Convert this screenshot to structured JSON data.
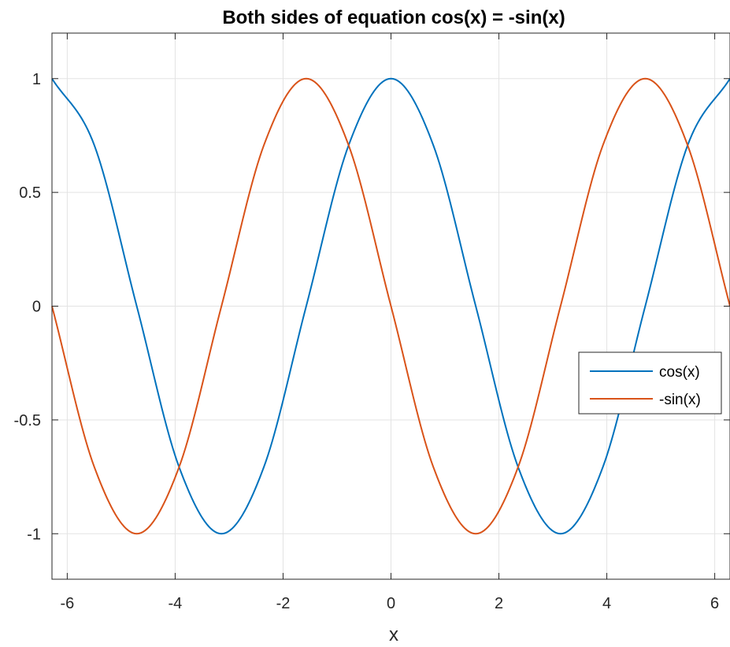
{
  "chart_data": {
    "type": "line",
    "title": "Both sides of equation cos(x) = -sin(x)",
    "xlabel": "x",
    "ylabel": "",
    "xlim": [
      -6.283,
      6.283
    ],
    "ylim": [
      -1.2,
      1.2
    ],
    "grid": true,
    "legend_position": "right",
    "x_ticks": [
      -6,
      -4,
      -2,
      0,
      2,
      4,
      6
    ],
    "x_tick_labels": [
      "-6",
      "-4",
      "-2",
      "0",
      "2",
      "4",
      "6"
    ],
    "y_ticks": [
      -1,
      -0.5,
      0,
      0.5,
      1
    ],
    "y_tick_labels": [
      "-1",
      "-0.5",
      "0",
      "0.5",
      "1"
    ],
    "x": [
      -6.283,
      -5.498,
      -4.712,
      -3.927,
      -3.142,
      -2.356,
      -1.571,
      -0.785,
      0,
      0.785,
      1.571,
      2.356,
      3.142,
      3.927,
      4.712,
      5.498,
      6.283
    ],
    "series": [
      {
        "name": "cos(x)",
        "color": "#0072BD",
        "values": [
          1,
          0.707,
          0,
          -0.707,
          -1,
          -0.707,
          0,
          0.707,
          1,
          0.707,
          0,
          -0.707,
          -1,
          -0.707,
          0,
          0.707,
          1
        ]
      },
      {
        "name": "-sin(x)",
        "color": "#D95319",
        "values": [
          0,
          -0.707,
          -1,
          -0.707,
          0,
          0.707,
          1,
          0.707,
          0,
          -0.707,
          -1,
          -0.707,
          0,
          0.707,
          1,
          0.707,
          0
        ]
      }
    ]
  }
}
